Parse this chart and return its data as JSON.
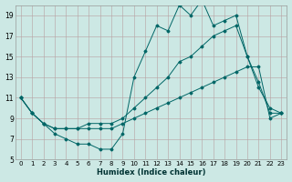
{
  "xlabel": "Humidex (Indice chaleur)",
  "xlim": [
    -0.5,
    23.5
  ],
  "ylim": [
    5,
    20
  ],
  "yticks": [
    5,
    7,
    9,
    11,
    13,
    15,
    17,
    19
  ],
  "xticks": [
    0,
    1,
    2,
    3,
    4,
    5,
    6,
    7,
    8,
    9,
    10,
    11,
    12,
    13,
    14,
    15,
    16,
    17,
    18,
    19,
    20,
    21,
    22,
    23
  ],
  "bg_color": "#cce8e4",
  "grid_color": "#b8a0a0",
  "line_color": "#006666",
  "line1_y": [
    11,
    9.5,
    8.5,
    7.5,
    7,
    6.5,
    6.5,
    6,
    6,
    7.5,
    13,
    15.5,
    18,
    17.5,
    20,
    19,
    20.5,
    18,
    18.5,
    19,
    15,
    12,
    10,
    9.5
  ],
  "line2_y": [
    11,
    9.5,
    8.5,
    8,
    8,
    8,
    8.5,
    8.5,
    8.5,
    9,
    10,
    11,
    12,
    13,
    14.5,
    15,
    16,
    17,
    17.5,
    18,
    15,
    12.5,
    9.5,
    9.5
  ],
  "line3_y": [
    11,
    9.5,
    8.5,
    8,
    8,
    8,
    8,
    8,
    8,
    8.5,
    9,
    9.5,
    10,
    10.5,
    11,
    11.5,
    12,
    12.5,
    13,
    13.5,
    14,
    14,
    9,
    9.5
  ]
}
